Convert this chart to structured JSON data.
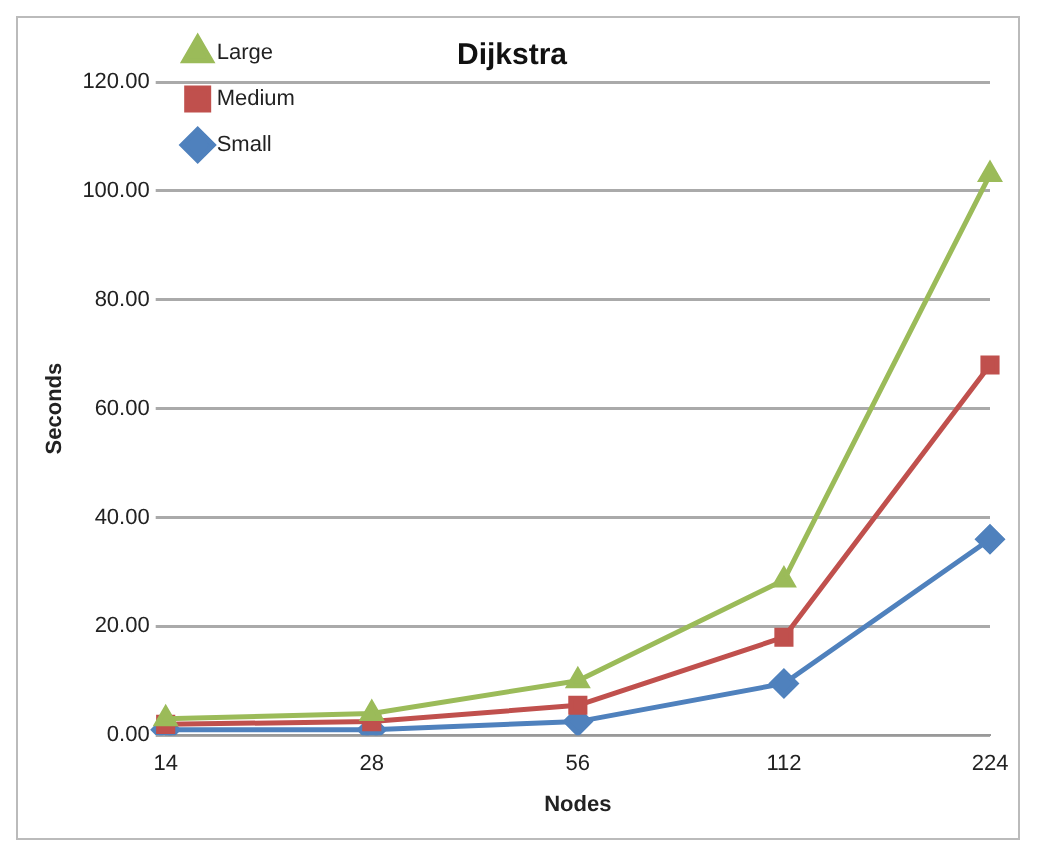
{
  "chart_data": {
    "type": "line",
    "title": "Dijkstra",
    "xlabel": "Nodes",
    "ylabel": "Seconds",
    "categories": [
      "14",
      "28",
      "56",
      "112",
      "224"
    ],
    "series": [
      {
        "name": "Large",
        "color": "#9bbb59",
        "marker": "triangle",
        "values": [
          3,
          4,
          10,
          28.5,
          103
        ]
      },
      {
        "name": "Medium",
        "color": "#c0504d",
        "marker": "square",
        "values": [
          2,
          2.5,
          5.5,
          18,
          68
        ]
      },
      {
        "name": "Small",
        "color": "#4f81bd",
        "marker": "diamond",
        "values": [
          1,
          1,
          2.5,
          9.5,
          36
        ]
      }
    ],
    "ylim": [
      0,
      120
    ],
    "yticks": [
      {
        "value": 0,
        "label": "0.00"
      },
      {
        "value": 20,
        "label": "20.00"
      },
      {
        "value": 40,
        "label": "40.00"
      },
      {
        "value": 60,
        "label": "60.00"
      },
      {
        "value": 80,
        "label": "80.00"
      },
      {
        "value": 100,
        "label": "100.00"
      },
      {
        "value": 120,
        "label": "120.00"
      }
    ],
    "grid": "y",
    "legend": "top left"
  }
}
